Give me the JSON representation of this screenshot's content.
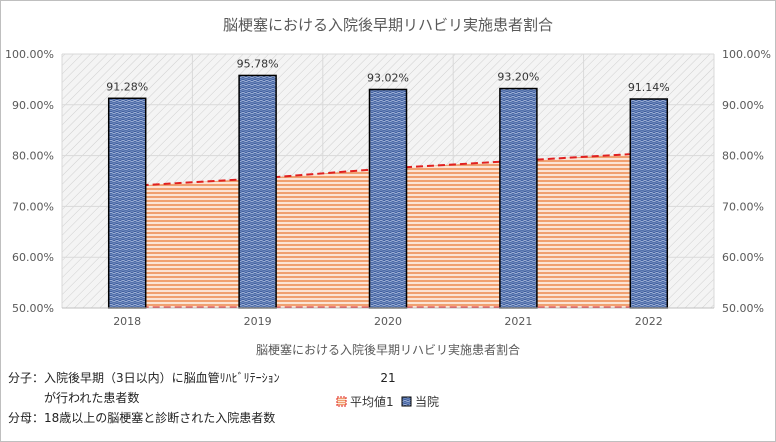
{
  "chart_data": {
    "type": "bar",
    "title": "脳梗塞における入院後早期リハビリ実施患者割合",
    "xlabel": "脳梗塞における入院後早期リハビリ実施患者割合",
    "categories": [
      "2018",
      "2019",
      "2020",
      "2021",
      "2022"
    ],
    "series": [
      {
        "name": "当院",
        "type": "bar",
        "values": [
          91.28,
          95.78,
          93.02,
          93.2,
          91.14
        ],
        "labels": [
          "91.28%",
          "95.78%",
          "93.02%",
          "93.20%",
          "91.14%"
        ]
      },
      {
        "name": "平均値1",
        "type": "area",
        "values": [
          74.0,
          75.5,
          77.5,
          79.0,
          80.5
        ]
      }
    ],
    "ylim": [
      50,
      100
    ],
    "yticks": [
      "50.00%",
      "60.00%",
      "70.00%",
      "80.00%",
      "90.00%",
      "100.00%"
    ],
    "ytick_values": [
      50,
      60,
      70,
      80,
      90,
      100
    ],
    "legend_position": "bottom",
    "grid": true,
    "colors": {
      "bar_fill": "#4a6aa8",
      "bar_stroke": "#000000",
      "area_fill": "#f0a070",
      "avg_line": "#e02020"
    }
  },
  "notes": {
    "numerator_prefix": "分子：",
    "numerator_line1": "入院後早期（3日以内）に脳血管ﾘﾊﾋﾞﾘﾃｰｼｮﾝ",
    "numerator_line2": "が行われた患者数",
    "denominator_prefix": "分母：",
    "denominator_text": "18歳以上の脳梗塞と診断された入院患者数",
    "index_number": "21"
  }
}
